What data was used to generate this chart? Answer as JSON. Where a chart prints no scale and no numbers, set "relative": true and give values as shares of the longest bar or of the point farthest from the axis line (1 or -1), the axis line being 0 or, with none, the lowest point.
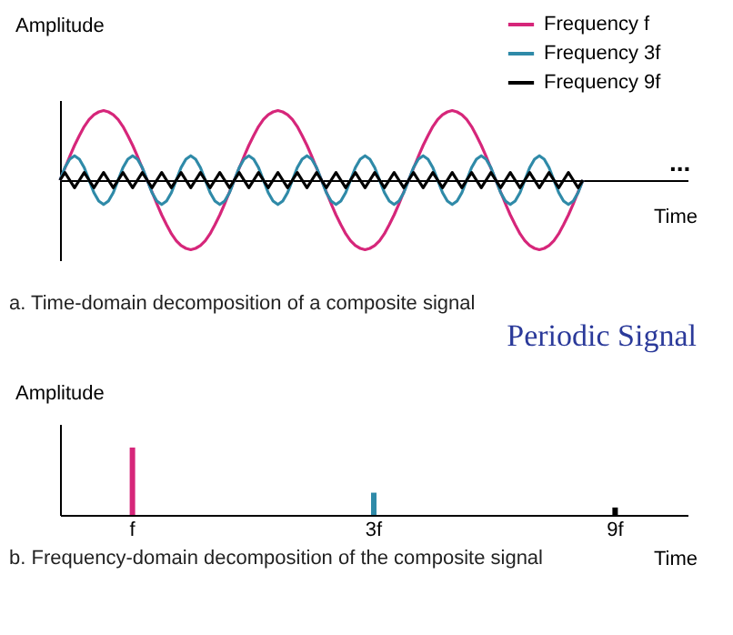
{
  "chart_data": [
    {
      "type": "line",
      "relative": true,
      "xlabel": "Time",
      "ylabel": "Amplitude",
      "legend": "top right",
      "grid": false,
      "tick_labels": false,
      "annotations": [
        "...",
        "a. Time-domain decomposition of a composite signal"
      ],
      "categories": [
        null,
        null,
        null,
        null,
        null,
        null,
        null,
        null,
        null,
        null,
        null,
        null,
        null,
        null,
        null,
        null,
        null,
        null,
        null,
        null,
        null,
        null,
        null,
        null,
        null,
        null,
        null,
        null,
        null,
        null,
        null,
        null,
        null,
        null,
        null,
        null,
        null,
        null,
        null,
        null,
        null,
        null,
        null,
        null,
        null,
        null,
        null,
        null,
        null,
        null,
        null,
        null,
        null,
        null,
        null,
        null,
        null,
        null,
        null,
        null,
        null,
        null,
        null,
        null,
        null,
        null,
        null,
        null,
        null,
        null,
        null,
        null,
        null,
        null,
        null,
        null,
        null,
        null,
        null,
        null,
        null,
        null,
        null,
        null,
        null,
        null,
        null,
        null,
        null,
        null,
        null,
        null,
        null,
        null,
        null,
        null,
        null,
        null,
        null,
        null,
        null,
        null,
        null,
        null,
        null,
        null,
        null,
        null,
        null
      ],
      "series": [
        {
          "name": "Frequency f",
          "color": "#d6267a",
          "values": [
            0,
            0.17,
            0.34,
            0.5,
            0.64,
            0.77,
            0.87,
            0.94,
            0.98,
            1,
            0.98,
            0.94,
            0.87,
            0.77,
            0.64,
            0.5,
            0.34,
            0.17,
            0,
            -0.17,
            -0.34,
            -0.5,
            -0.64,
            -0.77,
            -0.87,
            -0.94,
            -0.98,
            -1,
            -0.98,
            -0.94,
            -0.87,
            -0.77,
            -0.64,
            -0.5,
            -0.34,
            -0.17,
            0,
            0.17,
            0.34,
            0.5,
            0.64,
            0.77,
            0.87,
            0.94,
            0.98,
            1,
            0.98,
            0.94,
            0.87,
            0.77,
            0.64,
            0.5,
            0.34,
            0.17,
            0,
            -0.17,
            -0.34,
            -0.5,
            -0.64,
            -0.77,
            -0.87,
            -0.94,
            -0.98,
            -1,
            -0.98,
            -0.94,
            -0.87,
            -0.77,
            -0.64,
            -0.5,
            -0.34,
            -0.17,
            0,
            0.17,
            0.34,
            0.5,
            0.64,
            0.77,
            0.87,
            0.94,
            0.98,
            1,
            0.98,
            0.94,
            0.87,
            0.77,
            0.64,
            0.5,
            0.34,
            0.17,
            0,
            -0.17,
            -0.34,
            -0.5,
            -0.64,
            -0.77,
            -0.87,
            -0.94,
            -0.98,
            -1,
            -0.98,
            -0.94,
            -0.87,
            -0.77,
            -0.64,
            -0.5,
            -0.34,
            -0.17,
            0
          ]
        },
        {
          "name": "Frequency 3f",
          "color": "#2f8aa8",
          "values": [
            0,
            0.18,
            0.3,
            0.35,
            0.3,
            0.18,
            0,
            -0.18,
            -0.3,
            -0.35,
            -0.3,
            -0.18,
            0,
            0.18,
            0.3,
            0.35,
            0.3,
            0.18,
            0,
            -0.18,
            -0.3,
            -0.35,
            -0.3,
            -0.18,
            0,
            0.18,
            0.3,
            0.35,
            0.3,
            0.18,
            0,
            -0.18,
            -0.3,
            -0.35,
            -0.3,
            -0.18,
            0,
            0.18,
            0.3,
            0.35,
            0.3,
            0.18,
            0,
            -0.18,
            -0.3,
            -0.35,
            -0.3,
            -0.18,
            0,
            0.18,
            0.3,
            0.35,
            0.3,
            0.18,
            0,
            -0.18,
            -0.3,
            -0.35,
            -0.3,
            -0.18,
            0,
            0.18,
            0.3,
            0.35,
            0.3,
            0.18,
            0,
            -0.18,
            -0.3,
            -0.35,
            -0.3,
            -0.18,
            0,
            0.18,
            0.3,
            0.35,
            0.3,
            0.18,
            0,
            -0.18,
            -0.3,
            -0.35,
            -0.3,
            -0.18,
            0,
            0.18,
            0.3,
            0.35,
            0.3,
            0.18,
            0,
            -0.18,
            -0.3,
            -0.35,
            -0.3,
            -0.18,
            0,
            0.18,
            0.3,
            0.35,
            0.3,
            0.18,
            0,
            -0.18,
            -0.3,
            -0.35,
            -0.3,
            -0.18,
            0
          ]
        },
        {
          "name": "Frequency 9f",
          "color": "#000000",
          "values": [
            0,
            0.11,
            0,
            -0.11,
            0,
            0.11,
            0,
            -0.11,
            0,
            0.11,
            0,
            -0.11,
            0,
            0.11,
            0,
            -0.11,
            0,
            0.11,
            0,
            -0.11,
            0,
            0.11,
            0,
            -0.11,
            0,
            0.11,
            0,
            -0.11,
            0,
            0.11,
            0,
            -0.11,
            0,
            0.11,
            0,
            -0.11,
            0,
            0.11,
            0,
            -0.11,
            0,
            0.11,
            0,
            -0.11,
            0,
            0.11,
            0,
            -0.11,
            0,
            0.11,
            0,
            -0.11,
            0,
            0.11,
            0,
            -0.11,
            0,
            0.11,
            0,
            -0.11,
            0,
            0.11,
            0,
            -0.11,
            0,
            0.11,
            0,
            -0.11,
            0,
            0.11,
            0,
            -0.11,
            0,
            0.11,
            0,
            -0.11,
            0,
            0.11,
            0,
            -0.11,
            0,
            0.11,
            0,
            -0.11,
            0,
            0.11,
            0,
            -0.11,
            0,
            0.11,
            0,
            -0.11,
            0,
            0.11,
            0,
            -0.11,
            0,
            0.11,
            0,
            -0.11,
            0,
            0.11,
            0,
            -0.11,
            0,
            0.11,
            0,
            -0.11,
            0
          ]
        }
      ]
    },
    {
      "type": "bar",
      "relative": true,
      "title": "Periodic Signal",
      "xlabel": "Time",
      "ylabel": "Amplitude",
      "grid": false,
      "tick_labels": "x",
      "categories": [
        "f",
        "3f",
        "9f"
      ],
      "values": [
        1,
        0.33,
        0.11
      ],
      "colors": [
        "#d6267a",
        "#2f8aa8",
        "#000000"
      ],
      "annotations": [
        "b. Frequency-domain decomposition of the composite signal"
      ]
    }
  ]
}
